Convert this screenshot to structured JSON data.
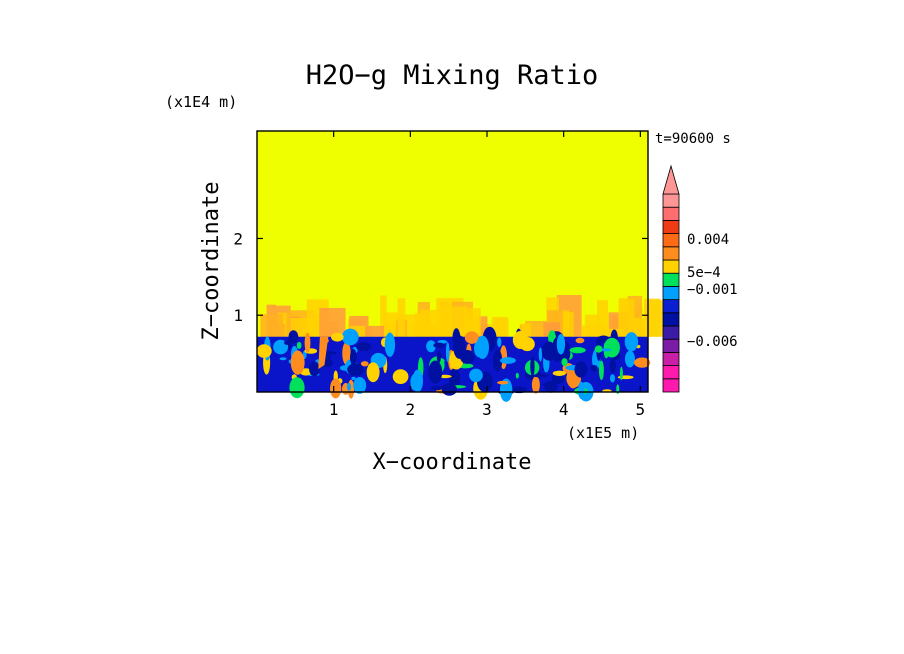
{
  "chart_data": {
    "type": "heatmap",
    "title": "H2O−g Mixing Ratio",
    "xlabel": "X−coordinate",
    "ylabel": "Z−coordinate",
    "x_scale_label": "(x1E5 m)",
    "y_scale_label": "(x1E4 m)",
    "time_label": "t=90600 s",
    "xlim": [
      0,
      5.1
    ],
    "ylim": [
      0,
      3.4
    ],
    "x_ticks": [
      {
        "value": 1,
        "label": "1"
      },
      {
        "value": 2,
        "label": "2"
      },
      {
        "value": 3,
        "label": "3"
      },
      {
        "value": 4,
        "label": "4"
      },
      {
        "value": 5,
        "label": "5"
      }
    ],
    "y_ticks": [
      {
        "value": 1,
        "label": "1"
      },
      {
        "value": 2,
        "label": "2"
      }
    ],
    "field_regions": {
      "upper_uniform": {
        "z_min": 0.72,
        "z_max": 3.4,
        "color": "#f0ff00"
      },
      "band_texture_z": [
        0.72,
        1.2
      ],
      "lower_field_z": [
        0,
        0.72
      ],
      "lower_base_color": "#0a14c8"
    },
    "colorbar": {
      "levels": [
        {
          "color": "#ff1aae"
        },
        {
          "color": "#ff1aae"
        },
        {
          "color": "#c81fa6"
        },
        {
          "color": "#7a1ca6"
        },
        {
          "color": "#3a1ca6"
        },
        {
          "color": "#0010a0"
        },
        {
          "color": "#0a1ed2"
        },
        {
          "color": "#00a0ff"
        },
        {
          "color": "#00e05a"
        },
        {
          "color": "#ffd200"
        },
        {
          "color": "#ff8c1e"
        },
        {
          "color": "#ff6a14"
        },
        {
          "color": "#f03c14"
        },
        {
          "color": "#ff6e6e"
        },
        {
          "color": "#ff9696"
        }
      ],
      "overflow_color": "#ff9696",
      "labels": [
        {
          "text": "0.004",
          "value": 0.004
        },
        {
          "text": "5e−4",
          "value": 0.0005
        },
        {
          "text": "−0.001",
          "value": -0.001
        },
        {
          "text": "−0.006",
          "value": -0.006
        }
      ]
    }
  }
}
